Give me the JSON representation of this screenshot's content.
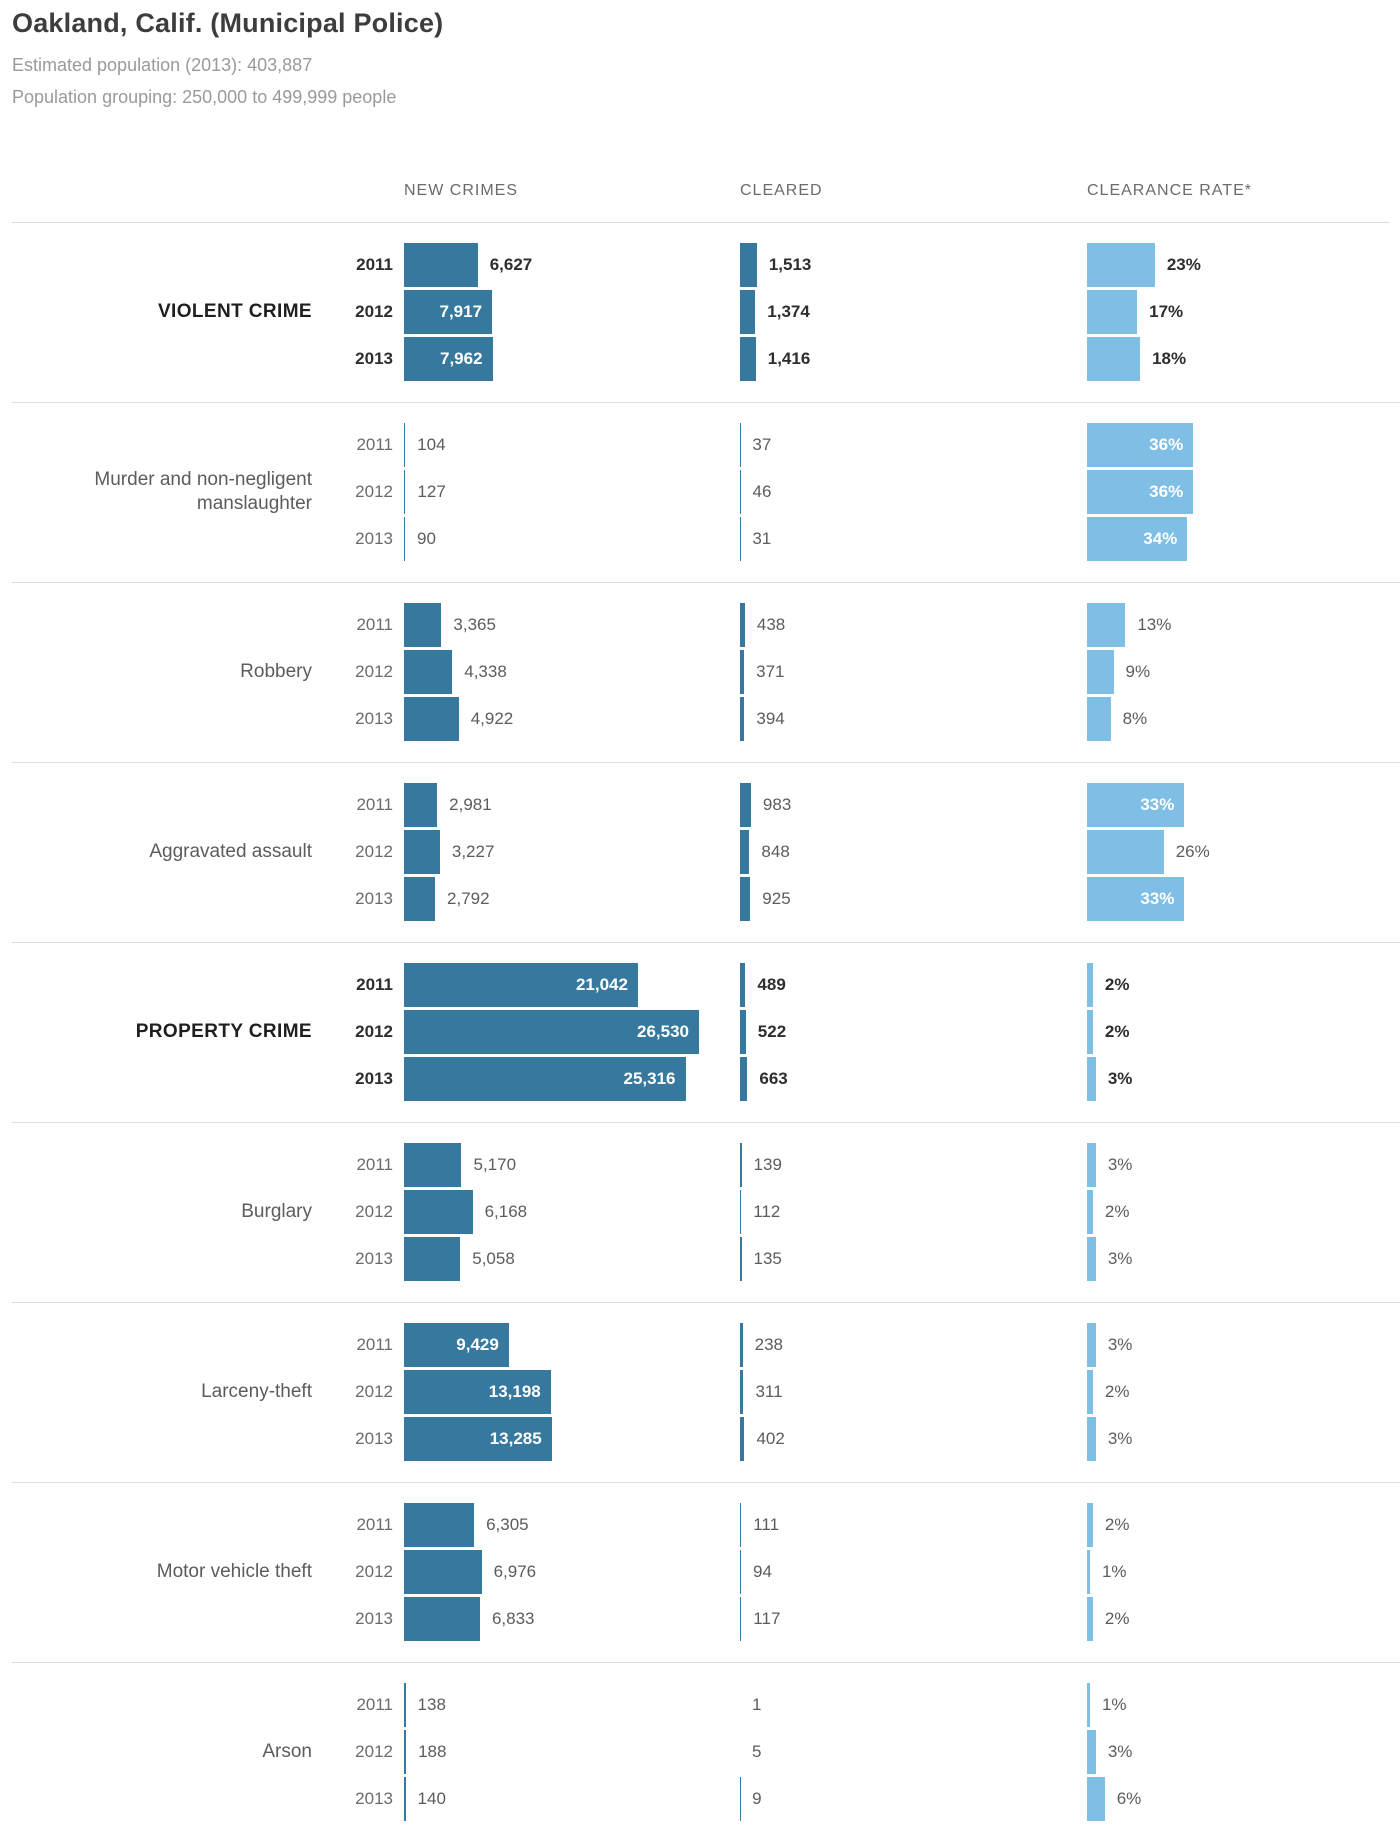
{
  "header": {
    "title": "Oakland, Calif. (Municipal Police)",
    "population_line": "Estimated population (2013): 403,887",
    "grouping_line": "Population grouping: 250,000 to 499,999 people"
  },
  "colors": {
    "new_cleared_bar": "#37799E",
    "clearance_bar": "#7FBFE6",
    "inside_bar_text": "#FFFFFF",
    "separator": "#DCDCDC"
  },
  "chart_data": {
    "type": "bar",
    "orientation": "horizontal",
    "columns": [
      "NEW CRIMES",
      "CLEARED",
      "CLEARANCE RATE*"
    ],
    "years": [
      "2011",
      "2012",
      "2013"
    ],
    "scale_hints": {
      "new_and_cleared_share_linear_scale": true,
      "max_new_crimes_value": 26530,
      "clearance_rate_axis_pct": [
        0,
        100
      ]
    },
    "sections": [
      {
        "label": "VIOLENT CRIME",
        "summary": true,
        "rows": [
          {
            "year": "2011",
            "new_crimes": 6627,
            "new_crimes_label": "6,627",
            "new_label_inside": false,
            "cleared": 1513,
            "cleared_label": "1,513",
            "clearance_rate_pct": 23,
            "clearance_rate_label": "23%",
            "rate_label_inside": false
          },
          {
            "year": "2012",
            "new_crimes": 7917,
            "new_crimes_label": "7,917",
            "new_label_inside": true,
            "cleared": 1374,
            "cleared_label": "1,374",
            "clearance_rate_pct": 17,
            "clearance_rate_label": "17%",
            "rate_label_inside": false
          },
          {
            "year": "2013",
            "new_crimes": 7962,
            "new_crimes_label": "7,962",
            "new_label_inside": true,
            "cleared": 1416,
            "cleared_label": "1,416",
            "clearance_rate_pct": 18,
            "clearance_rate_label": "18%",
            "rate_label_inside": false
          }
        ]
      },
      {
        "label": "Murder and non-negligent manslaughter",
        "summary": false,
        "rows": [
          {
            "year": "2011",
            "new_crimes": 104,
            "new_crimes_label": "104",
            "new_label_inside": false,
            "cleared": 37,
            "cleared_label": "37",
            "clearance_rate_pct": 36,
            "clearance_rate_label": "36%",
            "rate_label_inside": true
          },
          {
            "year": "2012",
            "new_crimes": 127,
            "new_crimes_label": "127",
            "new_label_inside": false,
            "cleared": 46,
            "cleared_label": "46",
            "clearance_rate_pct": 36,
            "clearance_rate_label": "36%",
            "rate_label_inside": true
          },
          {
            "year": "2013",
            "new_crimes": 90,
            "new_crimes_label": "90",
            "new_label_inside": false,
            "cleared": 31,
            "cleared_label": "31",
            "clearance_rate_pct": 34,
            "clearance_rate_label": "34%",
            "rate_label_inside": true
          }
        ]
      },
      {
        "label": "Robbery",
        "summary": false,
        "rows": [
          {
            "year": "2011",
            "new_crimes": 3365,
            "new_crimes_label": "3,365",
            "new_label_inside": false,
            "cleared": 438,
            "cleared_label": "438",
            "clearance_rate_pct": 13,
            "clearance_rate_label": "13%",
            "rate_label_inside": false
          },
          {
            "year": "2012",
            "new_crimes": 4338,
            "new_crimes_label": "4,338",
            "new_label_inside": false,
            "cleared": 371,
            "cleared_label": "371",
            "clearance_rate_pct": 9,
            "clearance_rate_label": "9%",
            "rate_label_inside": false
          },
          {
            "year": "2013",
            "new_crimes": 4922,
            "new_crimes_label": "4,922",
            "new_label_inside": false,
            "cleared": 394,
            "cleared_label": "394",
            "clearance_rate_pct": 8,
            "clearance_rate_label": "8%",
            "rate_label_inside": false
          }
        ]
      },
      {
        "label": "Aggravated assault",
        "summary": false,
        "rows": [
          {
            "year": "2011",
            "new_crimes": 2981,
            "new_crimes_label": "2,981",
            "new_label_inside": false,
            "cleared": 983,
            "cleared_label": "983",
            "clearance_rate_pct": 33,
            "clearance_rate_label": "33%",
            "rate_label_inside": true
          },
          {
            "year": "2012",
            "new_crimes": 3227,
            "new_crimes_label": "3,227",
            "new_label_inside": false,
            "cleared": 848,
            "cleared_label": "848",
            "clearance_rate_pct": 26,
            "clearance_rate_label": "26%",
            "rate_label_inside": false
          },
          {
            "year": "2013",
            "new_crimes": 2792,
            "new_crimes_label": "2,792",
            "new_label_inside": false,
            "cleared": 925,
            "cleared_label": "925",
            "clearance_rate_pct": 33,
            "clearance_rate_label": "33%",
            "rate_label_inside": true
          }
        ]
      },
      {
        "label": "PROPERTY CRIME",
        "summary": true,
        "rows": [
          {
            "year": "2011",
            "new_crimes": 21042,
            "new_crimes_label": "21,042",
            "new_label_inside": true,
            "cleared": 489,
            "cleared_label": "489",
            "clearance_rate_pct": 2,
            "clearance_rate_label": "2%",
            "rate_label_inside": false
          },
          {
            "year": "2012",
            "new_crimes": 26530,
            "new_crimes_label": "26,530",
            "new_label_inside": true,
            "cleared": 522,
            "cleared_label": "522",
            "clearance_rate_pct": 2,
            "clearance_rate_label": "2%",
            "rate_label_inside": false
          },
          {
            "year": "2013",
            "new_crimes": 25316,
            "new_crimes_label": "25,316",
            "new_label_inside": true,
            "cleared": 663,
            "cleared_label": "663",
            "clearance_rate_pct": 3,
            "clearance_rate_label": "3%",
            "rate_label_inside": false
          }
        ]
      },
      {
        "label": "Burglary",
        "summary": false,
        "rows": [
          {
            "year": "2011",
            "new_crimes": 5170,
            "new_crimes_label": "5,170",
            "new_label_inside": false,
            "cleared": 139,
            "cleared_label": "139",
            "clearance_rate_pct": 3,
            "clearance_rate_label": "3%",
            "rate_label_inside": false
          },
          {
            "year": "2012",
            "new_crimes": 6168,
            "new_crimes_label": "6,168",
            "new_label_inside": false,
            "cleared": 112,
            "cleared_label": "112",
            "clearance_rate_pct": 2,
            "clearance_rate_label": "2%",
            "rate_label_inside": false
          },
          {
            "year": "2013",
            "new_crimes": 5058,
            "new_crimes_label": "5,058",
            "new_label_inside": false,
            "cleared": 135,
            "cleared_label": "135",
            "clearance_rate_pct": 3,
            "clearance_rate_label": "3%",
            "rate_label_inside": false
          }
        ]
      },
      {
        "label": "Larceny-theft",
        "summary": false,
        "rows": [
          {
            "year": "2011",
            "new_crimes": 9429,
            "new_crimes_label": "9,429",
            "new_label_inside": true,
            "cleared": 238,
            "cleared_label": "238",
            "clearance_rate_pct": 3,
            "clearance_rate_label": "3%",
            "rate_label_inside": false
          },
          {
            "year": "2012",
            "new_crimes": 13198,
            "new_crimes_label": "13,198",
            "new_label_inside": true,
            "cleared": 311,
            "cleared_label": "311",
            "clearance_rate_pct": 2,
            "clearance_rate_label": "2%",
            "rate_label_inside": false
          },
          {
            "year": "2013",
            "new_crimes": 13285,
            "new_crimes_label": "13,285",
            "new_label_inside": true,
            "cleared": 402,
            "cleared_label": "402",
            "clearance_rate_pct": 3,
            "clearance_rate_label": "3%",
            "rate_label_inside": false
          }
        ]
      },
      {
        "label": "Motor vehicle theft",
        "summary": false,
        "rows": [
          {
            "year": "2011",
            "new_crimes": 6305,
            "new_crimes_label": "6,305",
            "new_label_inside": false,
            "cleared": 111,
            "cleared_label": "111",
            "clearance_rate_pct": 2,
            "clearance_rate_label": "2%",
            "rate_label_inside": false
          },
          {
            "year": "2012",
            "new_crimes": 6976,
            "new_crimes_label": "6,976",
            "new_label_inside": false,
            "cleared": 94,
            "cleared_label": "94",
            "clearance_rate_pct": 1,
            "clearance_rate_label": "1%",
            "rate_label_inside": false
          },
          {
            "year": "2013",
            "new_crimes": 6833,
            "new_crimes_label": "6,833",
            "new_label_inside": false,
            "cleared": 117,
            "cleared_label": "117",
            "clearance_rate_pct": 2,
            "clearance_rate_label": "2%",
            "rate_label_inside": false
          }
        ]
      },
      {
        "label": "Arson",
        "summary": false,
        "rows": [
          {
            "year": "2011",
            "new_crimes": 138,
            "new_crimes_label": "138",
            "new_label_inside": false,
            "cleared": 1,
            "cleared_label": "1",
            "clearance_rate_pct": 1,
            "clearance_rate_label": "1%",
            "rate_label_inside": false
          },
          {
            "year": "2012",
            "new_crimes": 188,
            "new_crimes_label": "188",
            "new_label_inside": false,
            "cleared": 5,
            "cleared_label": "5",
            "clearance_rate_pct": 3,
            "clearance_rate_label": "3%",
            "rate_label_inside": false
          },
          {
            "year": "2013",
            "new_crimes": 140,
            "new_crimes_label": "140",
            "new_label_inside": false,
            "cleared": 9,
            "cleared_label": "9",
            "clearance_rate_pct": 6,
            "clearance_rate_label": "6%",
            "rate_label_inside": false
          }
        ]
      }
    ]
  }
}
